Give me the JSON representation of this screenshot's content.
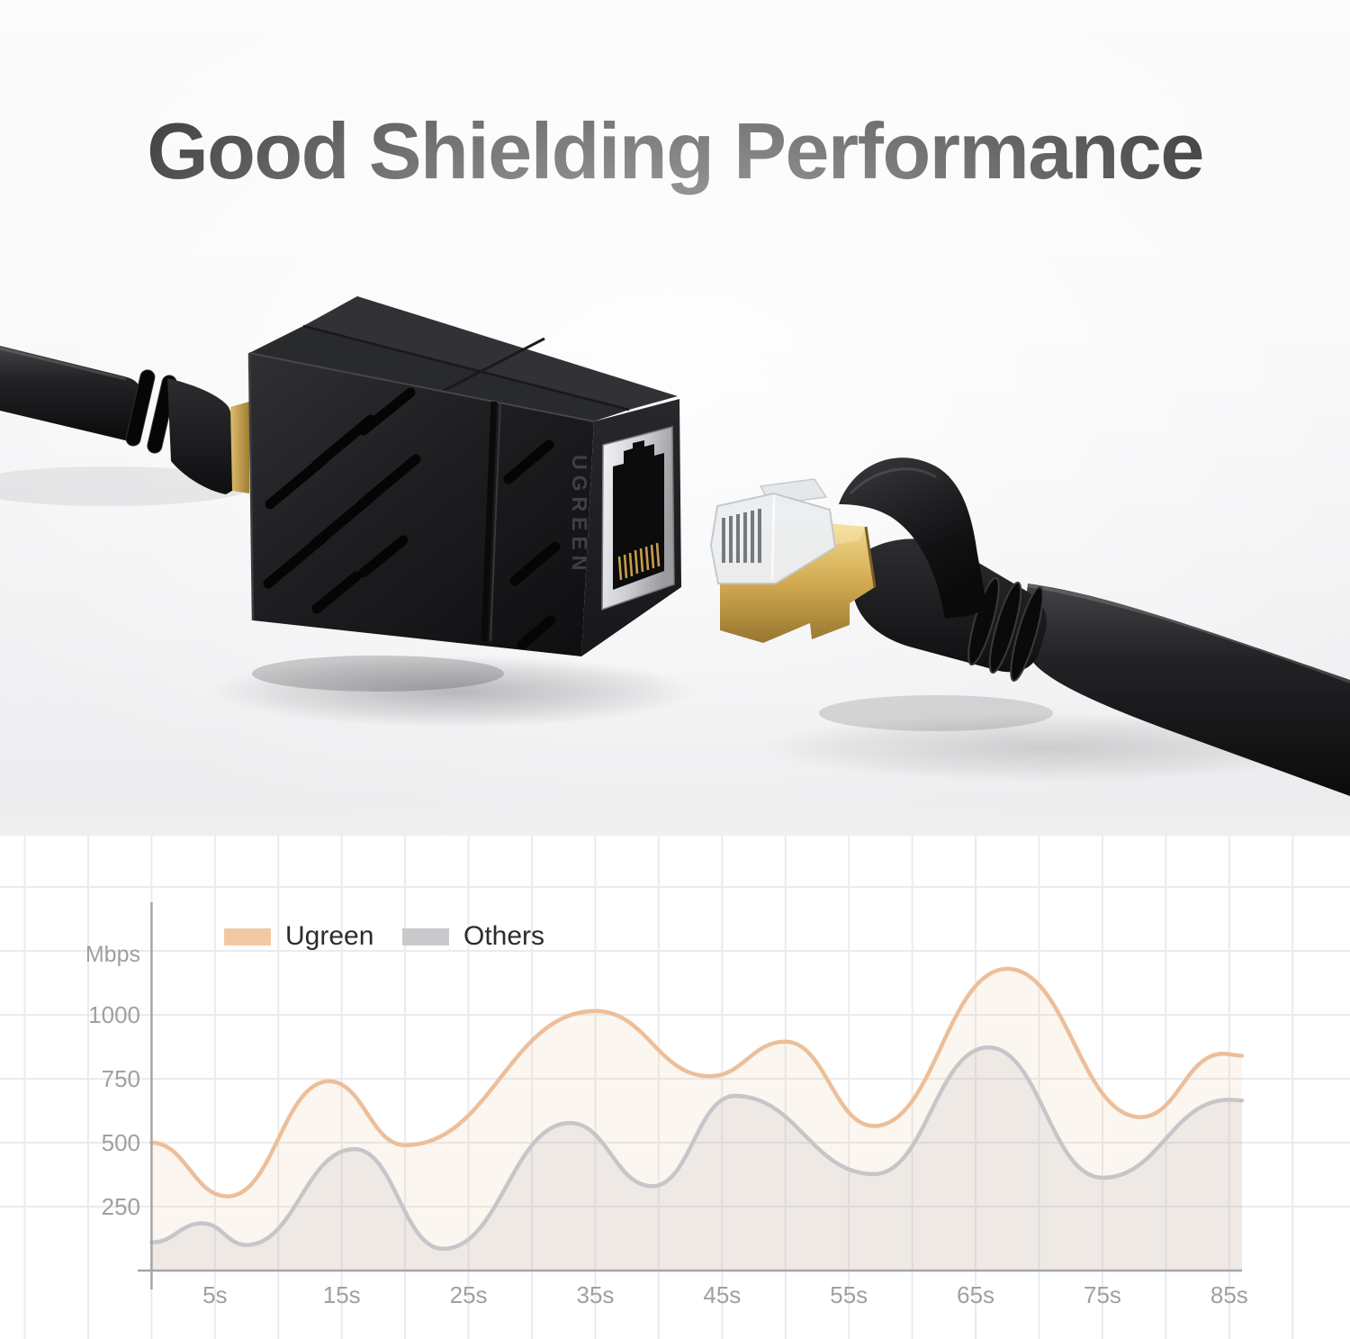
{
  "title": "Good Shielding Performance",
  "product": {
    "brand_text": "UGREEN"
  },
  "chart_data": {
    "type": "area",
    "title": "",
    "y_axis_title": "Mbps",
    "x_unit": "seconds",
    "x_range": [
      0,
      86
    ],
    "y_range": [
      0,
      1450
    ],
    "grid": true,
    "legend_position": "top-left-inside",
    "x_ticks": [
      {
        "t": 5,
        "label": "5s"
      },
      {
        "t": 15,
        "label": "15s"
      },
      {
        "t": 25,
        "label": "25s"
      },
      {
        "t": 35,
        "label": "35s"
      },
      {
        "t": 45,
        "label": "45s"
      },
      {
        "t": 55,
        "label": "55s"
      },
      {
        "t": 65,
        "label": "65s"
      },
      {
        "t": 75,
        "label": "75s"
      },
      {
        "t": 85,
        "label": "85s"
      }
    ],
    "y_ticks": [
      {
        "v": 250,
        "label": "250"
      },
      {
        "v": 500,
        "label": "500"
      },
      {
        "v": 750,
        "label": "750"
      },
      {
        "v": 1000,
        "label": "1000"
      }
    ],
    "series": [
      {
        "name": "Ugreen",
        "line_color": "#ecbf9a",
        "fill_color": "rgba(238,196,160,0.16)",
        "legend_color": "#f3c8a5",
        "points": [
          {
            "t": 0,
            "v": 500
          },
          {
            "t": 6,
            "v": 290
          },
          {
            "t": 14,
            "v": 740
          },
          {
            "t": 20,
            "v": 490
          },
          {
            "t": 35,
            "v": 1015
          },
          {
            "t": 44,
            "v": 760
          },
          {
            "t": 50,
            "v": 895
          },
          {
            "t": 57,
            "v": 565
          },
          {
            "t": 67.5,
            "v": 1180
          },
          {
            "t": 78,
            "v": 600
          },
          {
            "t": 84.5,
            "v": 848
          },
          {
            "t": 86,
            "v": 840
          }
        ]
      },
      {
        "name": "Others",
        "line_color": "#c6c6c9",
        "fill_color": "rgba(158,158,166,0.14)",
        "legend_color": "#c9c9cc",
        "points": [
          {
            "t": 0,
            "v": 110
          },
          {
            "t": 4,
            "v": 185
          },
          {
            "t": 7.5,
            "v": 100
          },
          {
            "t": 16,
            "v": 475
          },
          {
            "t": 23,
            "v": 85
          },
          {
            "t": 33,
            "v": 577
          },
          {
            "t": 39.5,
            "v": 330
          },
          {
            "t": 46,
            "v": 683
          },
          {
            "t": 57,
            "v": 377
          },
          {
            "t": 66,
            "v": 873
          },
          {
            "t": 75,
            "v": 363
          },
          {
            "t": 85,
            "v": 668
          },
          {
            "t": 86,
            "v": 665
          }
        ]
      }
    ],
    "colors": {
      "axis": "#a6a6a9",
      "grid": "#ebebed",
      "tick_text": "#9fa0a3"
    }
  }
}
